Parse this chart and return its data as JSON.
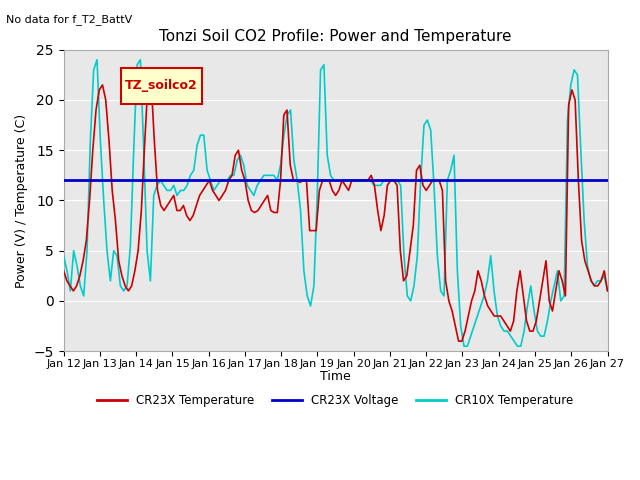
{
  "title": "Tonzi Soil CO2 Profile: Power and Temperature",
  "no_data_text": "No data for f_T2_BattV",
  "legend_box_text": "TZ_soilco2",
  "ylabel": "Power (V) / Temperature (C)",
  "xlabel": "Time",
  "ylim": [
    -5,
    25
  ],
  "yticks": [
    -5,
    0,
    5,
    10,
    15,
    20,
    25
  ],
  "xlim": [
    0,
    15
  ],
  "xtick_labels": [
    "Jan 12",
    "Jan 13",
    "Jan 14",
    "Jan 15",
    "Jan 16",
    "Jan 17",
    "Jan 18",
    "Jan 19",
    "Jan 20",
    "Jan 21",
    "Jan 22",
    "Jan 23",
    "Jan 24",
    "Jan 25",
    "Jan 26",
    "Jan 27"
  ],
  "xtick_positions": [
    0,
    1,
    2,
    3,
    4,
    5,
    6,
    7,
    8,
    9,
    10,
    11,
    12,
    13,
    14,
    15
  ],
  "voltage_value": 12.0,
  "plot_bg_color": "#e8e8e8",
  "grid_color": "#ffffff",
  "line_red_color": "#cc0000",
  "line_blue_color": "#0000cc",
  "line_cyan_color": "#00cccc",
  "legend_box_bg": "#ffffcc",
  "legend_box_border": "#cc0000",
  "cr23x_temp_y": [
    3.0,
    2.0,
    1.5,
    1.0,
    1.5,
    2.5,
    4.0,
    6.0,
    10.0,
    15.0,
    19.0,
    21.0,
    21.5,
    20.0,
    16.0,
    11.0,
    8.0,
    4.0,
    2.5,
    1.5,
    1.0,
    1.5,
    3.0,
    5.0,
    9.0,
    15.5,
    21.5,
    22.0,
    16.0,
    11.0,
    9.5,
    9.0,
    9.5,
    10.0,
    10.5,
    9.0,
    9.0,
    9.5,
    8.5,
    8.0,
    8.5,
    9.5,
    10.5,
    11.0,
    11.5,
    12.0,
    11.0,
    10.5,
    10.0,
    10.5,
    11.0,
    12.0,
    12.5,
    14.5,
    15.0,
    13.0,
    12.0,
    10.0,
    9.0,
    8.8,
    9.0,
    9.5,
    10.0,
    10.5,
    9.0,
    8.8,
    8.8,
    12.0,
    18.5,
    19.0,
    13.5,
    12.0,
    12.0,
    11.8,
    12.0,
    12.0,
    7.0,
    7.0,
    7.0,
    11.0,
    12.0,
    12.0,
    12.0,
    11.0,
    10.5,
    11.0,
    12.0,
    11.5,
    11.0,
    12.0,
    12.0,
    12.0,
    12.0,
    12.0,
    12.0,
    12.5,
    11.5,
    9.0,
    7.0,
    8.5,
    11.5,
    12.0,
    12.0,
    11.5,
    5.0,
    2.0,
    2.5,
    5.0,
    7.5,
    13.0,
    13.5,
    11.5,
    11.0,
    11.5,
    12.0,
    12.0,
    12.0,
    11.0,
    2.0,
    0.0,
    -1.0,
    -2.5,
    -4.0,
    -4.0,
    -3.0,
    -1.5,
    0.0,
    1.0,
    3.0,
    2.0,
    0.5,
    -0.5,
    -1.0,
    -1.5,
    -1.5,
    -1.5,
    -2.0,
    -2.5,
    -3.0,
    -2.0,
    1.0,
    3.0,
    0.5,
    -2.0,
    -3.0,
    -3.0,
    -2.0,
    0.0,
    2.0,
    4.0,
    0.0,
    -1.0,
    1.0,
    3.0,
    2.0,
    0.5,
    19.5,
    21.0,
    20.0,
    12.0,
    6.0,
    4.0,
    3.0,
    2.0,
    1.5,
    1.5,
    2.0,
    3.0,
    1.0
  ],
  "cr10x_temp_y": [
    4.5,
    3.0,
    1.0,
    5.0,
    3.5,
    1.5,
    0.5,
    5.0,
    16.0,
    23.0,
    24.0,
    16.0,
    10.0,
    5.0,
    2.0,
    5.0,
    4.5,
    1.5,
    1.0,
    1.5,
    5.5,
    15.0,
    23.5,
    24.0,
    15.0,
    5.0,
    2.0,
    10.5,
    11.5,
    12.0,
    11.5,
    11.0,
    11.0,
    11.5,
    10.5,
    11.0,
    11.0,
    11.5,
    12.5,
    13.0,
    15.5,
    16.5,
    16.5,
    13.0,
    12.0,
    11.0,
    11.5,
    12.0,
    12.0,
    12.0,
    12.5,
    12.5,
    14.0,
    14.5,
    13.5,
    11.5,
    11.0,
    10.5,
    11.5,
    12.0,
    12.5,
    12.5,
    12.5,
    12.5,
    12.0,
    13.5,
    16.5,
    18.5,
    19.0,
    14.0,
    12.0,
    9.0,
    3.0,
    0.5,
    -0.5,
    1.5,
    10.5,
    23.0,
    23.5,
    14.5,
    12.5,
    12.0,
    12.0,
    12.0,
    12.0,
    12.0,
    12.0,
    12.0,
    12.0,
    12.0,
    12.0,
    12.0,
    12.0,
    11.5,
    11.5,
    11.5,
    12.0,
    12.0,
    12.0,
    12.0,
    12.0,
    11.5,
    4.5,
    0.5,
    0.0,
    1.5,
    4.5,
    12.0,
    17.5,
    18.0,
    17.0,
    11.5,
    4.5,
    1.0,
    0.5,
    12.0,
    13.0,
    14.5,
    3.0,
    -2.5,
    -4.5,
    -4.5,
    -3.5,
    -2.5,
    -1.5,
    -0.5,
    0.5,
    2.0,
    4.5,
    1.0,
    -1.5,
    -2.5,
    -3.0,
    -3.0,
    -3.5,
    -4.0,
    -4.5,
    -4.5,
    -3.0,
    -0.5,
    1.5,
    -1.0,
    -3.0,
    -3.5,
    -3.5,
    -2.0,
    0.0,
    1.5,
    3.0,
    0.0,
    0.5,
    18.0,
    21.5,
    23.0,
    22.5,
    15.0,
    8.0,
    3.5,
    2.0,
    1.5,
    2.0,
    2.0,
    2.5,
    1.0
  ]
}
